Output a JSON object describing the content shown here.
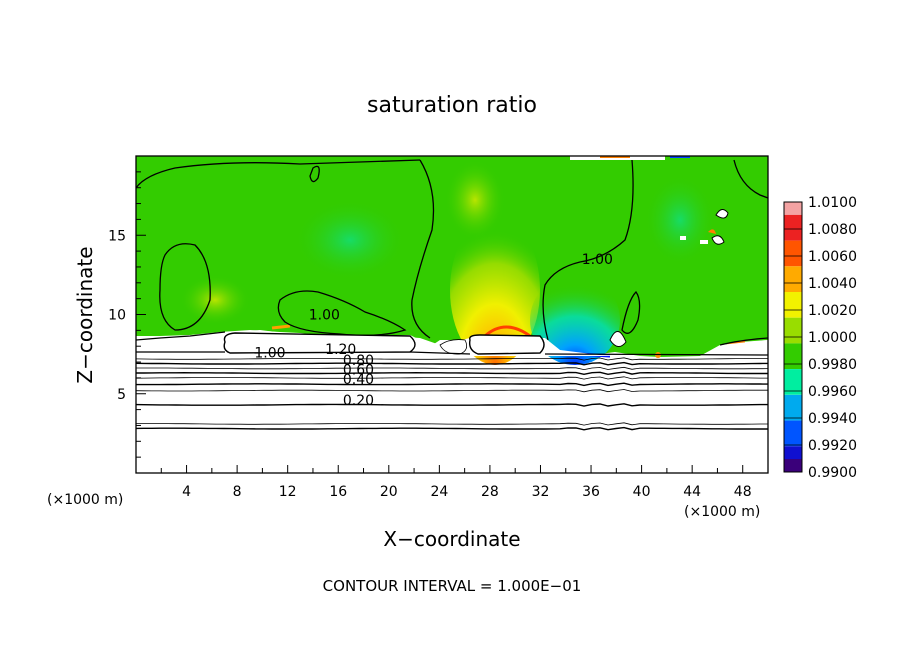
{
  "chart_data": {
    "type": "heatmap",
    "title": "saturation ratio",
    "xlabel": "X−coordinate",
    "ylabel": "Z−coordinate",
    "x_unit": "(×1000 m)",
    "x_unit_right": "(×1000 m)",
    "xlim": [
      0,
      50
    ],
    "ylim": [
      0,
      20
    ],
    "x_ticks": [
      4,
      8,
      12,
      16,
      20,
      24,
      28,
      32,
      36,
      40,
      44,
      48
    ],
    "y_ticks": [
      5,
      10,
      15
    ],
    "colorbar": {
      "levels": [
        "1.0100",
        "1.0080",
        "1.0060",
        "1.0040",
        "1.0020",
        "1.0000",
        "0.9980",
        "0.9960",
        "0.9940",
        "0.9920",
        "0.9900"
      ],
      "colors": [
        "#f4a3a3",
        "#ec2222",
        "#ff5500",
        "#ffaa00",
        "#f2f200",
        "#99dd00",
        "#33cc00",
        "#00eea0",
        "#00aaee",
        "#0055ff",
        "#1010d0",
        "#3a007a"
      ]
    },
    "contour_labels": [
      {
        "text": "1.00",
        "x": 14.9,
        "y": 9.7
      },
      {
        "text": "1.00",
        "x": 36.5,
        "y": 13.2
      },
      {
        "text": "1.00",
        "x": 10.6,
        "y": 7.3
      },
      {
        "text": "1.20",
        "x": 16.2,
        "y": 7.5
      },
      {
        "text": "0.80",
        "x": 17.6,
        "y": 6.8
      },
      {
        "text": "0.60",
        "x": 17.6,
        "y": 6.2
      },
      {
        "text": "0.40",
        "x": 17.6,
        "y": 5.6
      },
      {
        "text": "0.20",
        "x": 17.6,
        "y": 4.3
      }
    ],
    "stable_layer_contour_heights": [
      2.8,
      3.1,
      4.3,
      5.2,
      5.6,
      6.0,
      6.3,
      6.6,
      6.9,
      7.2
    ],
    "footer": "CONTOUR INTERVAL = 1.000E−01"
  }
}
